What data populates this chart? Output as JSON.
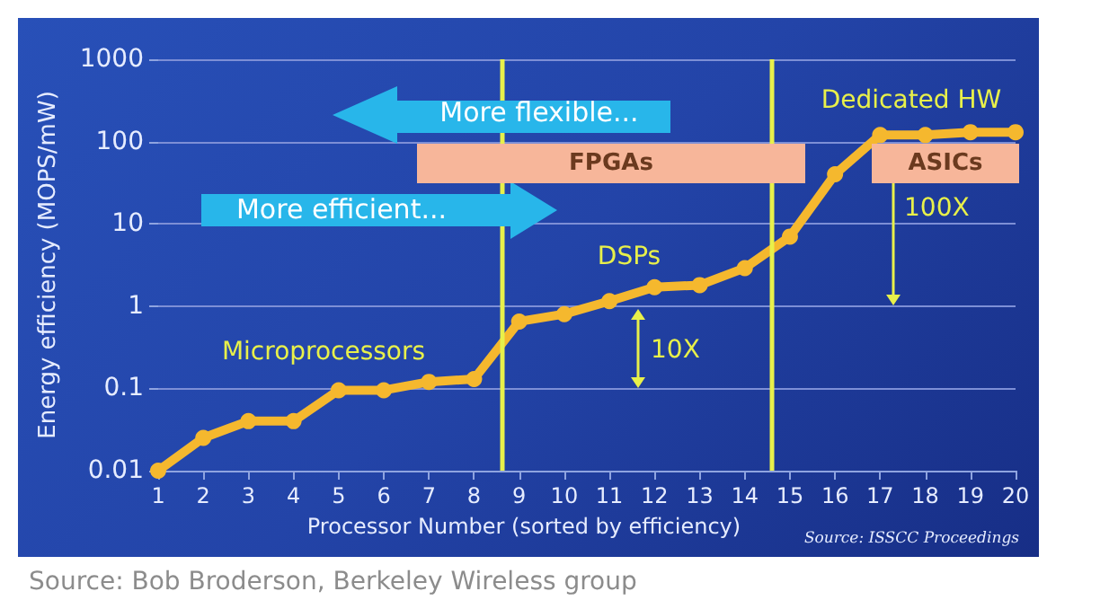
{
  "chart_data": {
    "type": "line",
    "ylabel": "Energy efficiency (MOPS/mW)",
    "xlabel": "Processor Number (sorted by efficiency)",
    "x": [
      1,
      2,
      3,
      4,
      5,
      6,
      7,
      8,
      9,
      10,
      11,
      12,
      13,
      14,
      15,
      16,
      17,
      18,
      19,
      20
    ],
    "series": [
      {
        "color": "#f5b82e",
        "values": [
          0.01,
          0.025,
          0.04,
          0.04,
          0.095,
          0.095,
          0.12,
          0.13,
          0.65,
          0.8,
          1.15,
          1.7,
          1.8,
          2.9,
          7,
          40,
          120,
          120,
          130,
          130
        ]
      }
    ],
    "xlim": [
      1,
      20
    ],
    "xticks": [
      1,
      2,
      3,
      4,
      5,
      6,
      7,
      8,
      9,
      10,
      11,
      12,
      13,
      14,
      15,
      16,
      17,
      18,
      19,
      20
    ],
    "ylim": [
      0.01,
      1000
    ],
    "yticks": [
      0.01,
      0.1,
      1,
      10,
      100,
      1000
    ],
    "log": true,
    "grid": "y",
    "marker": "circle",
    "line_style": "solid",
    "ref_lines": [
      {
        "axis": "x",
        "value": 8.6,
        "color": "#e8f04a"
      },
      {
        "axis": "x",
        "value": 14.6,
        "color": "#e8f04a"
      }
    ],
    "annotations": [
      "More flexible...",
      "More efficient...",
      "FPGAs",
      "ASICs",
      "Microprocessors",
      "DSPs",
      "Dedicated HW",
      "10X",
      "100X",
      "Source: ISSCC Proceedings",
      "Source: Bob Broderson, Berkeley Wireless group"
    ]
  }
}
